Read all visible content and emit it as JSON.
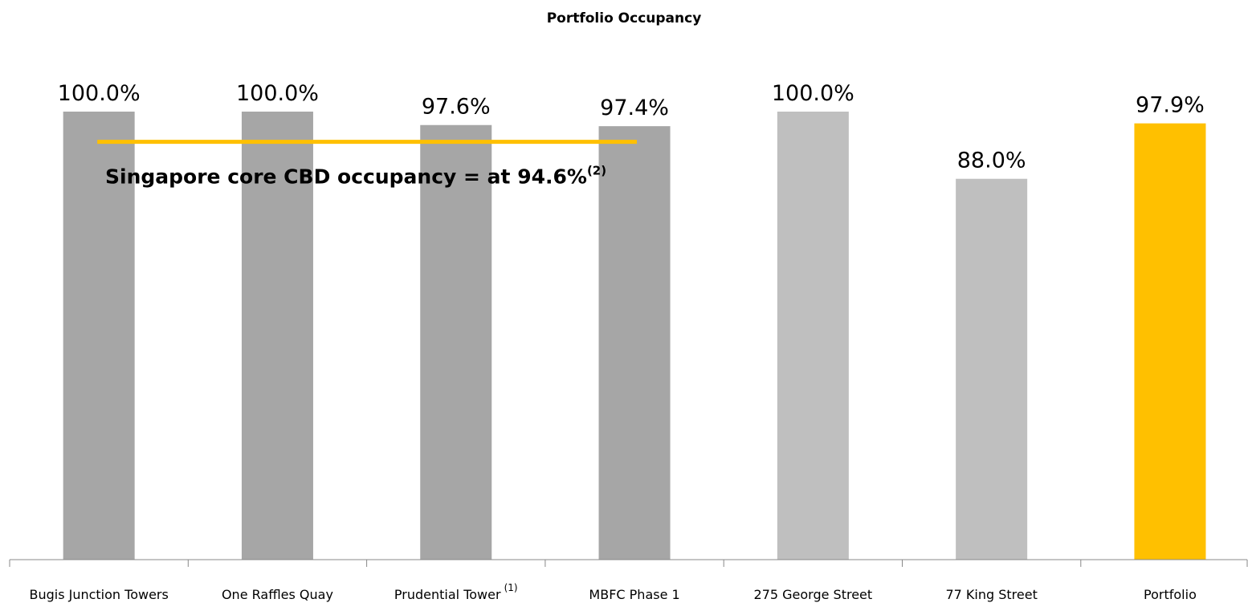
{
  "chart_data": {
    "type": "bar",
    "title": "Portfolio Occupancy",
    "categories": [
      "Bugis Junction Towers",
      "One Raffles Quay",
      "Prudential Tower",
      "MBFC Phase 1",
      "275 George Street",
      "77 King Street",
      "Portfolio"
    ],
    "category_superscripts": {
      "2": "(1)"
    },
    "values": [
      100,
      100,
      97.6,
      97.4,
      100,
      88,
      97.9
    ],
    "value_labels": [
      "100.0%",
      "100.0%",
      "97.6%",
      "97.4%",
      "100.0%",
      "88.0%",
      "97.9%"
    ],
    "colors": [
      "#a6a6a6",
      "#a6a6a6",
      "#a6a6a6",
      "#a6a6a6",
      "#bfbfbf",
      "#bfbfbf",
      "#ffc000"
    ],
    "ylim": [
      20,
      100
    ],
    "reference_line": {
      "value": 94.6,
      "color": "#ffc000",
      "label": "Singapore core CBD occupancy = at 94.6%",
      "label_superscript": "(2)"
    }
  }
}
